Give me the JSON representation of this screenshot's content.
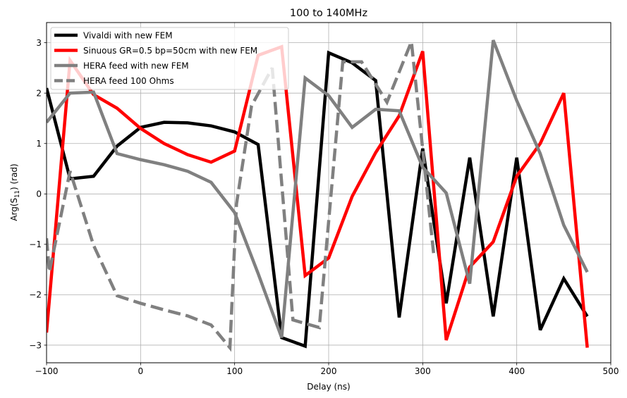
{
  "chart_data": {
    "type": "line",
    "title": "100 to 140MHz",
    "xlabel": "Delay (ns)",
    "ylabel_parts": {
      "pre": "Arg(",
      "sym": "S",
      "sub": "11",
      "post": ") (rad)"
    },
    "xlim": [
      -100,
      500
    ],
    "ylim": [
      -3.35,
      3.4
    ],
    "xticks": [
      -100,
      0,
      100,
      200,
      300,
      400,
      500
    ],
    "yticks": [
      -3,
      -2,
      -1,
      0,
      1,
      2,
      3
    ],
    "grid": true,
    "legend_position": "top-left",
    "series": [
      {
        "name": "Vivaldi with new FEM",
        "color": "#000000",
        "dash": "solid",
        "x": [
          -100,
          -75,
          -50,
          -25,
          0,
          25,
          50,
          75,
          100,
          125,
          150,
          175,
          200,
          225,
          250,
          275,
          300,
          325,
          350,
          375,
          400,
          425,
          450,
          475
        ],
        "y": [
          2.1,
          0.3,
          0.35,
          0.95,
          1.32,
          1.42,
          1.41,
          1.35,
          1.23,
          0.98,
          -2.85,
          -3.02,
          2.8,
          2.6,
          2.25,
          -2.45,
          0.9,
          -2.17,
          0.72,
          -2.43,
          0.72,
          -2.7,
          -1.68,
          -2.43
        ]
      },
      {
        "name": "Sinuous GR=0.5 bp=50cm with new FEM",
        "color": "#ff0000",
        "dash": "solid",
        "x": [
          -100,
          -75,
          -50,
          -25,
          0,
          25,
          50,
          75,
          100,
          125,
          150,
          175,
          200,
          225,
          250,
          275,
          300,
          325,
          350,
          375,
          400,
          425,
          450,
          475
        ],
        "y": [
          -2.75,
          2.65,
          1.97,
          1.7,
          1.3,
          1.0,
          0.78,
          0.63,
          0.85,
          2.75,
          2.92,
          -1.62,
          -1.27,
          -0.05,
          0.82,
          1.55,
          2.83,
          -2.9,
          -1.45,
          -0.95,
          0.35,
          1.0,
          2.0,
          -3.05
        ]
      },
      {
        "name": "HERA feed with new FEM",
        "color": "#808080",
        "dash": "solid",
        "x": [
          -100,
          -75,
          -50,
          -25,
          0,
          25,
          50,
          75,
          100,
          125,
          150,
          175,
          200,
          225,
          250,
          275,
          300,
          325,
          350,
          375,
          400,
          425,
          450,
          475
        ],
        "y": [
          1.42,
          2.0,
          2.02,
          0.8,
          0.68,
          0.58,
          0.45,
          0.23,
          -0.37,
          -1.58,
          -2.85,
          2.3,
          1.95,
          1.32,
          1.68,
          1.65,
          0.53,
          0.02,
          -1.78,
          3.05,
          1.85,
          0.8,
          -0.62,
          -1.55
        ]
      },
      {
        "name": "HERA feed 100 Ohms",
        "color": "#808080",
        "dash": "dashed",
        "x": [
          -100,
          -97,
          -75,
          -50,
          -25,
          0,
          25,
          50,
          75,
          95,
          102,
          118,
          140,
          162,
          190,
          215,
          235,
          262,
          288,
          312
        ],
        "y": [
          -0.88,
          -1.55,
          0.45,
          -1.02,
          -2.02,
          -2.17,
          -2.3,
          -2.42,
          -2.6,
          -3.05,
          -0.2,
          1.75,
          2.5,
          -2.5,
          -2.65,
          2.62,
          2.62,
          1.82,
          3.02,
          -1.25
        ]
      }
    ]
  }
}
